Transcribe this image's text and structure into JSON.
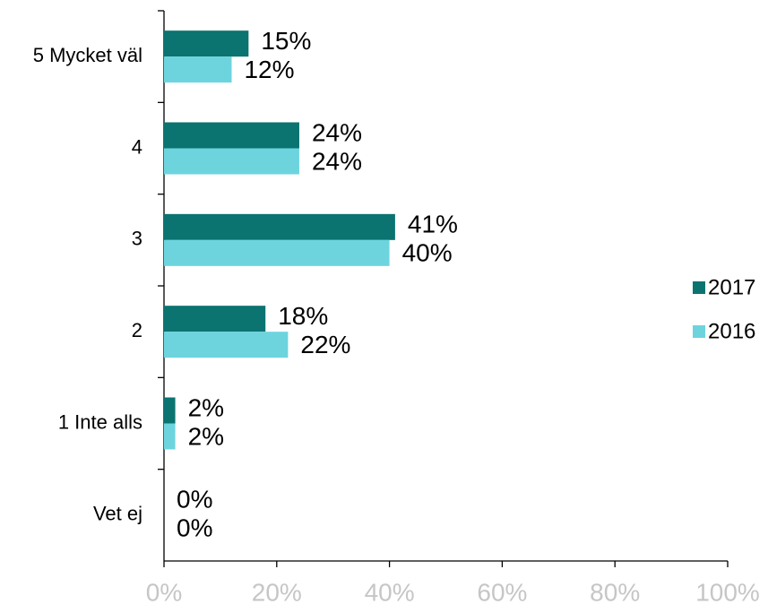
{
  "chart_data": {
    "type": "barh",
    "categories": [
      "5 Mycket väl",
      "4",
      "3",
      "2",
      "1 Inte alls",
      "Vet ej"
    ],
    "series": [
      {
        "name": "2017",
        "color": "#0b7370",
        "values": [
          15,
          24,
          41,
          18,
          2,
          0
        ],
        "value_labels": [
          "15%",
          "24%",
          "41%",
          "18%",
          "2%",
          "0%"
        ]
      },
      {
        "name": "2016",
        "color": "#6dd4de",
        "values": [
          12,
          24,
          40,
          22,
          2,
          0
        ],
        "value_labels": [
          "12%",
          "24%",
          "40%",
          "22%",
          "2%",
          "0%"
        ]
      }
    ],
    "xlim": [
      0,
      100
    ],
    "xticks": [
      {
        "value": 0,
        "label": "0%"
      },
      {
        "value": 20,
        "label": "20%"
      },
      {
        "value": 40,
        "label": "40%"
      },
      {
        "value": 60,
        "label": "60%"
      },
      {
        "value": 80,
        "label": "80%"
      },
      {
        "value": 100,
        "label": "100%"
      }
    ],
    "legend": "right"
  }
}
